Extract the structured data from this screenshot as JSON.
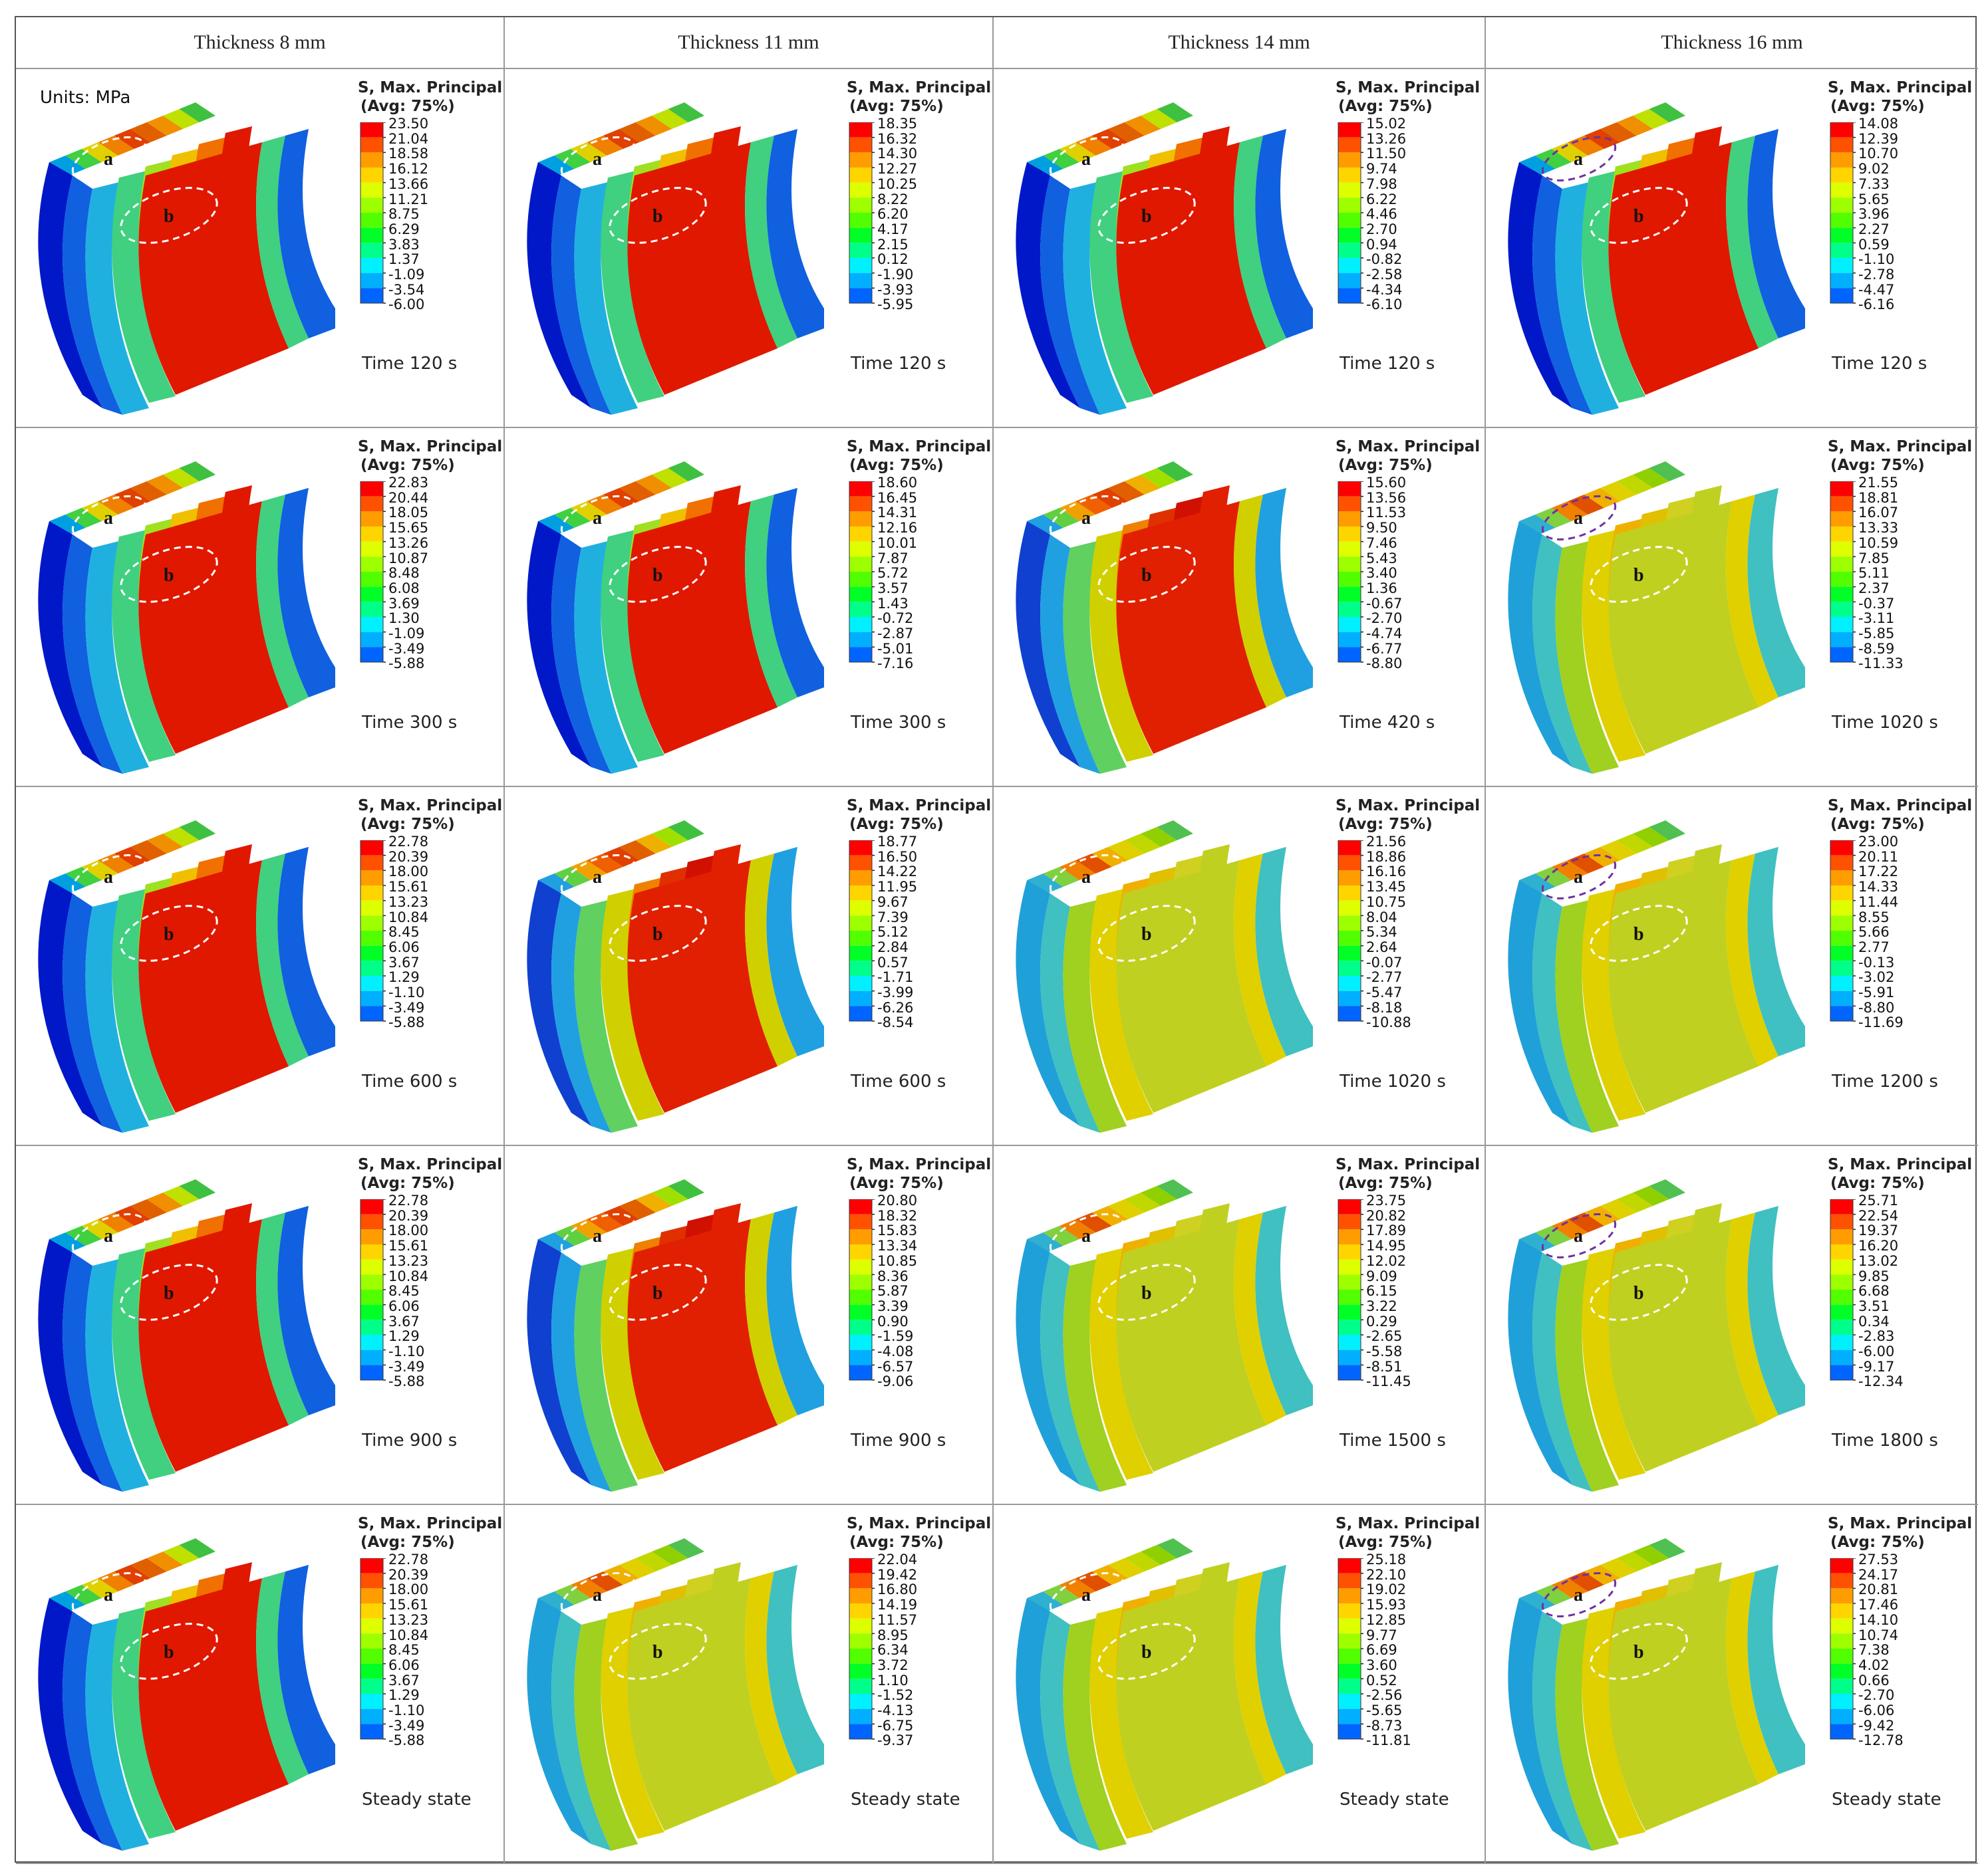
{
  "headers": [
    "Thickness  8 mm",
    "Thickness  11 mm",
    "Thickness  14 mm",
    "Thickness  16 mm"
  ],
  "units_label": "Units: MPa",
  "legend": {
    "line1": "S, Max. Principal",
    "line2": "(Avg: 75%)"
  },
  "region_labels": {
    "a": "a",
    "b": "b"
  },
  "colors": [
    "#ff0000",
    "#ff5200",
    "#ff9d00",
    "#ffd500",
    "#ddff00",
    "#9dff00",
    "#52ff00",
    "#00ff27",
    "#00ff8a",
    "#00f0ff",
    "#00b0ff",
    "#0065ff",
    "#001aff"
  ],
  "cells": [
    {
      "time": "Time 120 s",
      "values": [
        "23.50",
        "21.04",
        "18.58",
        "16.12",
        "13.66",
        "11.21",
        "8.75",
        "6.29",
        "3.83",
        "1.37",
        "-1.09",
        "-3.54",
        "-6.00"
      ],
      "mode": "early"
    },
    {
      "time": "Time 120 s",
      "values": [
        "18.35",
        "16.32",
        "14.30",
        "12.27",
        "10.25",
        "8.22",
        "6.20",
        "4.17",
        "2.15",
        "0.12",
        "-1.90",
        "-3.93",
        "-5.95"
      ],
      "mode": "early"
    },
    {
      "time": "Time 120 s",
      "values": [
        "15.02",
        "13.26",
        "11.50",
        "9.74",
        "7.98",
        "6.22",
        "4.46",
        "2.70",
        "0.94",
        "-0.82",
        "-2.58",
        "-4.34",
        "-6.10"
      ],
      "mode": "early"
    },
    {
      "time": "Time 120 s",
      "values": [
        "14.08",
        "12.39",
        "10.70",
        "9.02",
        "7.33",
        "5.65",
        "3.96",
        "2.27",
        "0.59",
        "-1.10",
        "-2.78",
        "-4.47",
        "-6.16"
      ],
      "mode": "early"
    },
    {
      "time": "Time 300 s",
      "values": [
        "22.83",
        "20.44",
        "18.05",
        "15.65",
        "13.26",
        "10.87",
        "8.48",
        "6.08",
        "3.69",
        "1.30",
        "-1.09",
        "-3.49",
        "-5.88"
      ],
      "mode": "early"
    },
    {
      "time": "Time 300 s",
      "values": [
        "18.60",
        "16.45",
        "14.31",
        "12.16",
        "10.01",
        "7.87",
        "5.72",
        "3.57",
        "1.43",
        "-0.72",
        "-2.87",
        "-5.01",
        "-7.16"
      ],
      "mode": "early"
    },
    {
      "time": "Time 420 s",
      "values": [
        "15.60",
        "13.56",
        "11.53",
        "9.50",
        "7.46",
        "5.43",
        "3.40",
        "1.36",
        "-0.67",
        "-2.70",
        "-4.74",
        "-6.77",
        "-8.80"
      ],
      "mode": "mid"
    },
    {
      "time": "Time 1020 s",
      "values": [
        "21.55",
        "18.81",
        "16.07",
        "13.33",
        "10.59",
        "7.85",
        "5.11",
        "2.37",
        "-0.37",
        "-3.11",
        "-5.85",
        "-8.59",
        "-11.33"
      ],
      "mode": "late"
    },
    {
      "time": "Time 600 s",
      "values": [
        "22.78",
        "20.39",
        "18.00",
        "15.61",
        "13.23",
        "10.84",
        "8.45",
        "6.06",
        "3.67",
        "1.29",
        "-1.10",
        "-3.49",
        "-5.88"
      ],
      "mode": "early"
    },
    {
      "time": "Time 600 s",
      "values": [
        "18.77",
        "16.50",
        "14.22",
        "11.95",
        "9.67",
        "7.39",
        "5.12",
        "2.84",
        "0.57",
        "-1.71",
        "-3.99",
        "-6.26",
        "-8.54"
      ],
      "mode": "mid"
    },
    {
      "time": "Time 1020 s",
      "values": [
        "21.56",
        "18.86",
        "16.16",
        "13.45",
        "10.75",
        "8.04",
        "5.34",
        "2.64",
        "-0.07",
        "-2.77",
        "-5.47",
        "-8.18",
        "-10.88"
      ],
      "mode": "late"
    },
    {
      "time": "Time 1200 s",
      "values": [
        "23.00",
        "20.11",
        "17.22",
        "14.33",
        "11.44",
        "8.55",
        "5.66",
        "2.77",
        "-0.13",
        "-3.02",
        "-5.91",
        "-8.80",
        "-11.69"
      ],
      "mode": "late"
    },
    {
      "time": "Time 900 s",
      "values": [
        "22.78",
        "20.39",
        "18.00",
        "15.61",
        "13.23",
        "10.84",
        "8.45",
        "6.06",
        "3.67",
        "1.29",
        "-1.10",
        "-3.49",
        "-5.88"
      ],
      "mode": "early"
    },
    {
      "time": "Time 900 s",
      "values": [
        "20.80",
        "18.32",
        "15.83",
        "13.34",
        "10.85",
        "8.36",
        "5.87",
        "3.39",
        "0.90",
        "-1.59",
        "-4.08",
        "-6.57",
        "-9.06"
      ],
      "mode": "mid"
    },
    {
      "time": "Time 1500 s",
      "values": [
        "23.75",
        "20.82",
        "17.89",
        "14.95",
        "12.02",
        "9.09",
        "6.15",
        "3.22",
        "0.29",
        "-2.65",
        "-5.58",
        "-8.51",
        "-11.45"
      ],
      "mode": "late"
    },
    {
      "time": "Time 1800 s",
      "values": [
        "25.71",
        "22.54",
        "19.37",
        "16.20",
        "13.02",
        "9.85",
        "6.68",
        "3.51",
        "0.34",
        "-2.83",
        "-6.00",
        "-9.17",
        "-12.34"
      ],
      "mode": "late"
    },
    {
      "time": "Steady state",
      "values": [
        "22.78",
        "20.39",
        "18.00",
        "15.61",
        "13.23",
        "10.84",
        "8.45",
        "6.06",
        "3.67",
        "1.29",
        "-1.10",
        "-3.49",
        "-5.88"
      ],
      "mode": "early"
    },
    {
      "time": "Steady state",
      "values": [
        "22.04",
        "19.42",
        "16.80",
        "14.19",
        "11.57",
        "8.95",
        "6.34",
        "3.72",
        "1.10",
        "-1.52",
        "-4.13",
        "-6.75",
        "-9.37"
      ],
      "mode": "late"
    },
    {
      "time": "Steady state",
      "values": [
        "25.18",
        "22.10",
        "19.02",
        "15.93",
        "12.85",
        "9.77",
        "6.69",
        "3.60",
        "0.52",
        "-2.56",
        "-5.65",
        "-8.73",
        "-11.81"
      ],
      "mode": "late"
    },
    {
      "time": "Steady state",
      "values": [
        "27.53",
        "24.17",
        "20.81",
        "17.46",
        "14.10",
        "10.74",
        "7.38",
        "4.02",
        "0.66",
        "-2.70",
        "-6.06",
        "-9.42",
        "-12.78"
      ],
      "mode": "late"
    }
  ]
}
